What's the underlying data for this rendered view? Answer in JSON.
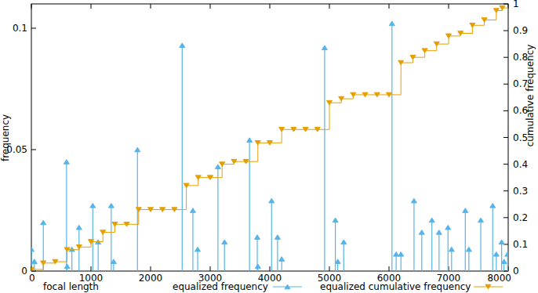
{
  "chart_data": {
    "type": "impulse",
    "xlabel": "focal length",
    "ylabel": "frequency",
    "y2label": "cumulative frequency",
    "xlim": [
      0,
      8000
    ],
    "xticks": [
      0,
      1000,
      2000,
      3000,
      4000,
      5000,
      6000,
      7000,
      8000
    ],
    "ylim": [
      0,
      0.11
    ],
    "yticks": [
      0,
      0.05,
      0.1
    ],
    "y2lim": [
      0,
      1
    ],
    "y2ticks": [
      0,
      0.1,
      0.2,
      0.3,
      0.4,
      0.5,
      0.6,
      0.7,
      0.8,
      0.9,
      1
    ],
    "legend": "bottom",
    "series": [
      {
        "name": "equalized frequency",
        "type": "impulse",
        "color": "#56b4e9",
        "marker": "triangle-up",
        "line_style": "solid",
        "x": [
          0,
          50,
          200,
          590,
          600,
          680,
          800,
          1030,
          1120,
          1340,
          1380,
          1780,
          2530,
          2710,
          2790,
          3130,
          3240,
          3660,
          3790,
          3800,
          4030,
          4130,
          4200,
          4920,
          5100,
          5140,
          5240,
          6050,
          6120,
          6200,
          6420,
          6550,
          6720,
          6840,
          6990,
          7050,
          7280,
          7340,
          7540,
          7740,
          7800,
          7890,
          7930,
          7990
        ],
        "values": [
          0.009,
          0.004,
          0.02,
          0.045,
          0.002,
          0.009,
          0.018,
          0.027,
          0.012,
          0.027,
          0.004,
          0.05,
          0.093,
          0.025,
          0.009,
          0.043,
          0.012,
          0.054,
          0.014,
          0.002,
          0.029,
          0.014,
          0.005,
          0.092,
          0.021,
          0.004,
          0.012,
          0.102,
          0.007,
          0.007,
          0.029,
          0.016,
          0.021,
          0.016,
          0.018,
          0.009,
          0.025,
          0.009,
          0.021,
          0.027,
          0.007,
          0.012,
          0.004,
          0.007
        ]
      },
      {
        "name": "equalized cumulative frequency",
        "type": "step",
        "axis": "y2",
        "color": "#e69f00",
        "marker": "triangle-down",
        "line_style": "solid",
        "x": [
          0,
          200,
          400,
          600,
          800,
          1000,
          1200,
          1400,
          1600,
          1800,
          2000,
          2200,
          2400,
          2600,
          2800,
          3000,
          3200,
          3400,
          3600,
          3800,
          4000,
          4200,
          4400,
          4600,
          4800,
          5000,
          5200,
          5400,
          5600,
          5800,
          6000,
          6200,
          6400,
          6600,
          6800,
          7000,
          7200,
          7400,
          7600,
          7800,
          7900
        ],
        "values": [
          0.006,
          0.03,
          0.035,
          0.08,
          0.09,
          0.11,
          0.145,
          0.175,
          0.175,
          0.23,
          0.23,
          0.23,
          0.23,
          0.32,
          0.35,
          0.35,
          0.4,
          0.41,
          0.41,
          0.48,
          0.48,
          0.53,
          0.53,
          0.53,
          0.53,
          0.63,
          0.645,
          0.66,
          0.66,
          0.66,
          0.66,
          0.78,
          0.8,
          0.825,
          0.85,
          0.88,
          0.89,
          0.92,
          0.94,
          0.975,
          0.985
        ]
      }
    ]
  }
}
